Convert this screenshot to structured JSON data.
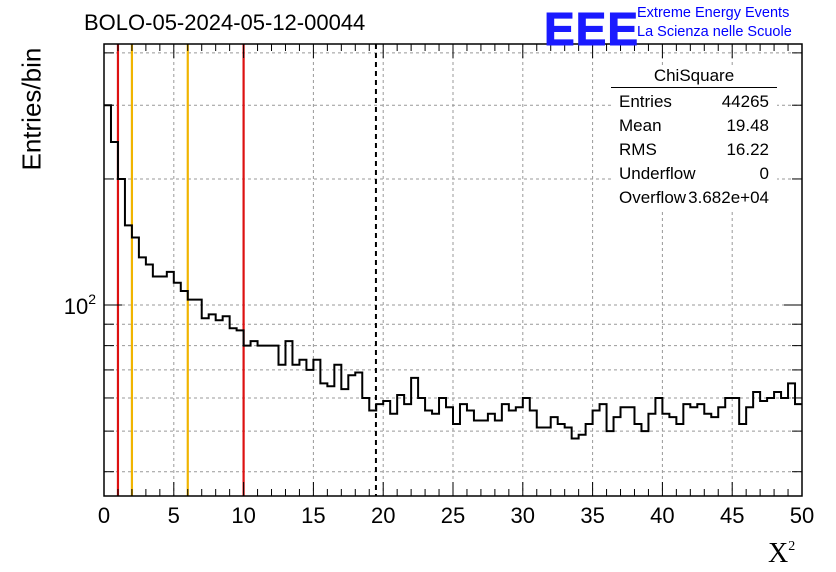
{
  "header": {
    "title": "BOLO-05-2024-05-12-00044",
    "logo_mark": "EEE",
    "logo_line1": "Extreme Energy Events",
    "logo_line2": "La Scienza nelle Scuole"
  },
  "stats_box": {
    "title": "ChiSquare",
    "rows": [
      {
        "key": "Entries",
        "value": "44265"
      },
      {
        "key": "Mean",
        "value": "19.48"
      },
      {
        "key": "RMS",
        "value": "16.22"
      },
      {
        "key": "Underflow",
        "value": "0"
      },
      {
        "key": "Overflow",
        "value": "3.682e+04"
      }
    ]
  },
  "colors": {
    "red_line": "#dd1111",
    "orange_line": "#f0b400",
    "histogram": "#000000",
    "grid": "#999999",
    "logo": "#1a1aff"
  },
  "chart_data": {
    "type": "histogram",
    "title": "BOLO-05-2024-05-12-00044",
    "xlabel": "X",
    "xlabel_superscript": "2",
    "ylabel": "Entries/bin",
    "x_scale": "linear",
    "y_scale": "log",
    "xlim": [
      0,
      50
    ],
    "ylim": [
      35,
      420
    ],
    "grid": true,
    "x_tick_labels": [
      "0",
      "5",
      "10",
      "15",
      "20",
      "25",
      "30",
      "35",
      "40",
      "45",
      "50"
    ],
    "y_tick_label": {
      "base": "10",
      "exponent": "2"
    },
    "bin_width": 0.5,
    "bin_start": 0,
    "values": [
      300,
      245,
      200,
      155,
      145,
      130,
      125,
      117,
      117,
      120,
      113,
      108,
      103,
      103,
      93,
      95,
      92,
      94,
      88,
      87,
      80,
      82,
      80,
      80,
      80,
      72,
      82,
      72,
      74,
      70,
      74,
      65,
      64,
      72,
      63,
      68,
      69,
      60,
      56,
      58,
      59,
      55,
      61,
      58,
      67,
      60,
      56,
      55,
      60,
      57,
      52,
      58,
      56,
      53,
      53,
      55,
      53,
      58,
      56,
      57,
      60,
      56,
      51,
      51,
      54,
      52,
      51,
      48,
      49,
      52,
      56,
      58,
      50,
      54,
      57,
      57,
      52,
      50,
      55,
      60,
      55,
      54,
      52,
      58,
      57,
      58,
      55,
      54,
      57,
      60,
      60,
      52,
      57,
      62,
      59,
      60,
      62,
      60,
      65,
      58
    ],
    "vertical_lines": [
      {
        "x": 1,
        "color": "red"
      },
      {
        "x": 2,
        "color": "orange"
      },
      {
        "x": 6,
        "color": "orange"
      },
      {
        "x": 10,
        "color": "red"
      },
      {
        "x": 19.48,
        "color": "black",
        "style": "dashed"
      }
    ]
  }
}
